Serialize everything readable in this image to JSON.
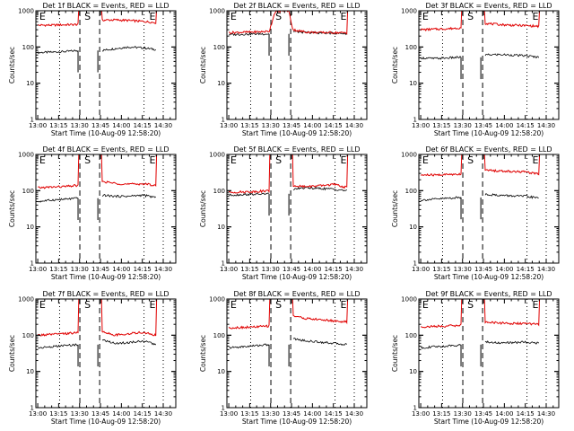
{
  "figure": {
    "type": "line",
    "panel_title_suffix": "BLACK = Events, RED = LLD",
    "xlabel": "Start Time (10-Aug-09 12:58:20)",
    "ylabel": "Counts/sec",
    "xticks": [
      "13:00",
      "13:15",
      "13:30",
      "13:45",
      "14:00",
      "14:15",
      "14:30"
    ],
    "x_range_min": [
      -1.33,
      99
    ],
    "yscale": "log",
    "ylim": [
      1,
      1000
    ],
    "yticks": [
      "1",
      "10",
      "100",
      "1000"
    ],
    "dashed_lines_min": [
      30.2,
      44.4
    ],
    "dotted_lines_min": [
      15.7,
      76.2,
      90.0
    ],
    "markers": [
      {
        "label": "E",
        "x": 1.2
      },
      {
        "label": "S",
        "x": 33.5
      },
      {
        "label": "E",
        "x": 80.0
      }
    ],
    "colors": {
      "events": "#000000",
      "lld": "#e00000"
    }
  },
  "chart_data": [
    {
      "panel": "Det 1f",
      "title": "Det 1f BLACK = Events, RED = LLD",
      "series": [
        {
          "name": "Events",
          "color": "#000000",
          "x": [
            0,
            10,
            20,
            29,
            46,
            55,
            65,
            75,
            85,
            98
          ],
          "y": [
            70,
            72,
            75,
            80,
            80,
            90,
            100,
            95,
            85,
            78
          ]
        },
        {
          "name": "LLD",
          "color": "#e00000",
          "x": [
            0,
            10,
            20,
            29,
            46,
            55,
            65,
            75,
            85,
            98
          ],
          "y": [
            400,
            400,
            410,
            420,
            550,
            560,
            540,
            510,
            470,
            420
          ]
        }
      ]
    },
    {
      "panel": "Det 2f",
      "title": "Det 2f BLACK = Events, RED = LLD",
      "series": [
        {
          "name": "Events",
          "color": "#000000",
          "x": [
            0,
            10,
            20,
            29,
            46,
            55,
            65,
            75,
            85,
            98
          ],
          "y": [
            220,
            225,
            230,
            230,
            270,
            250,
            245,
            240,
            235,
            230
          ]
        },
        {
          "name": "LLD",
          "color": "#e00000",
          "x": [
            0,
            10,
            20,
            29,
            33,
            38,
            43,
            46,
            55,
            65,
            75,
            85,
            98
          ],
          "y": [
            250,
            255,
            260,
            270,
            900,
            1000,
            1000,
            300,
            260,
            250,
            250,
            245,
            240
          ]
        }
      ]
    },
    {
      "panel": "Det 3f",
      "title": "Det 3f BLACK = Events, RED = LLD",
      "series": [
        {
          "name": "Events",
          "color": "#000000",
          "x": [
            0,
            10,
            20,
            29,
            46,
            55,
            65,
            75,
            85,
            98
          ],
          "y": [
            50,
            48,
            50,
            52,
            60,
            62,
            60,
            57,
            52,
            50
          ]
        },
        {
          "name": "LLD",
          "color": "#e00000",
          "x": [
            0,
            10,
            20,
            29,
            46,
            55,
            65,
            75,
            85,
            98
          ],
          "y": [
            300,
            310,
            320,
            340,
            450,
            420,
            400,
            390,
            370,
            350
          ]
        }
      ]
    },
    {
      "panel": "Det 4f",
      "title": "Det 4f BLACK = Events, RED = LLD",
      "series": [
        {
          "name": "Events",
          "color": "#000000",
          "x": [
            0,
            10,
            20,
            29,
            46,
            55,
            65,
            75,
            85,
            98
          ],
          "y": [
            50,
            55,
            58,
            62,
            75,
            70,
            70,
            75,
            65,
            55
          ]
        },
        {
          "name": "LLD",
          "color": "#e00000",
          "x": [
            0,
            10,
            20,
            29,
            46,
            55,
            65,
            75,
            85,
            98
          ],
          "y": [
            120,
            125,
            130,
            140,
            180,
            160,
            150,
            155,
            140,
            130
          ]
        }
      ]
    },
    {
      "panel": "Det 5f",
      "title": "Det 5f BLACK = Events, RED = LLD",
      "series": [
        {
          "name": "Events",
          "color": "#000000",
          "x": [
            0,
            10,
            20,
            29,
            46,
            55,
            65,
            75,
            85,
            98
          ],
          "y": [
            75,
            78,
            80,
            82,
            110,
            120,
            115,
            110,
            100,
            85
          ]
        },
        {
          "name": "LLD",
          "color": "#e00000",
          "x": [
            0,
            10,
            20,
            29,
            46,
            55,
            65,
            75,
            85,
            98
          ],
          "y": [
            90,
            92,
            95,
            100,
            140,
            130,
            135,
            150,
            120,
            95
          ]
        }
      ]
    },
    {
      "panel": "Det 6f",
      "title": "Det 6f BLACK = Events, RED = LLD",
      "series": [
        {
          "name": "Events",
          "color": "#000000",
          "x": [
            0,
            10,
            20,
            29,
            46,
            55,
            65,
            75,
            85,
            98
          ],
          "y": [
            55,
            58,
            62,
            65,
            80,
            75,
            72,
            70,
            62,
            55
          ]
        },
        {
          "name": "LLD",
          "color": "#e00000",
          "x": [
            0,
            10,
            20,
            29,
            46,
            55,
            65,
            75,
            85,
            98
          ],
          "y": [
            270,
            270,
            280,
            290,
            370,
            350,
            340,
            330,
            290,
            270
          ]
        }
      ]
    },
    {
      "panel": "Det 7f",
      "title": "Det 7f BLACK = Events, RED = LLD",
      "series": [
        {
          "name": "Events",
          "color": "#000000",
          "x": [
            0,
            10,
            20,
            29,
            46,
            55,
            65,
            75,
            85,
            98
          ],
          "y": [
            45,
            48,
            52,
            55,
            75,
            60,
            62,
            70,
            55,
            50
          ]
        },
        {
          "name": "LLD",
          "color": "#e00000",
          "x": [
            0,
            10,
            20,
            29,
            46,
            55,
            65,
            75,
            85,
            98
          ],
          "y": [
            100,
            105,
            110,
            120,
            130,
            100,
            110,
            120,
            100,
            95
          ]
        }
      ]
    },
    {
      "panel": "Det 8f",
      "title": "Det 8f BLACK = Events, RED = LLD",
      "series": [
        {
          "name": "Events",
          "color": "#000000",
          "x": [
            0,
            10,
            20,
            29,
            46,
            55,
            65,
            75,
            85,
            98
          ],
          "y": [
            45,
            48,
            52,
            55,
            80,
            70,
            65,
            60,
            55,
            45
          ]
        },
        {
          "name": "LLD",
          "color": "#e00000",
          "x": [
            0,
            10,
            20,
            29,
            46,
            55,
            65,
            75,
            85,
            98
          ],
          "y": [
            160,
            165,
            170,
            180,
            350,
            290,
            270,
            250,
            230,
            200
          ]
        }
      ]
    },
    {
      "panel": "Det 9f",
      "title": "Det 9f BLACK = Events, RED = LLD",
      "series": [
        {
          "name": "Events",
          "color": "#000000",
          "x": [
            0,
            10,
            20,
            29,
            46,
            55,
            65,
            75,
            85,
            98
          ],
          "y": [
            45,
            48,
            50,
            55,
            65,
            62,
            62,
            65,
            60,
            55
          ]
        },
        {
          "name": "LLD",
          "color": "#e00000",
          "x": [
            0,
            10,
            20,
            29,
            46,
            55,
            65,
            75,
            85,
            98
          ],
          "y": [
            170,
            175,
            180,
            190,
            230,
            220,
            210,
            210,
            200,
            190
          ]
        }
      ]
    }
  ]
}
